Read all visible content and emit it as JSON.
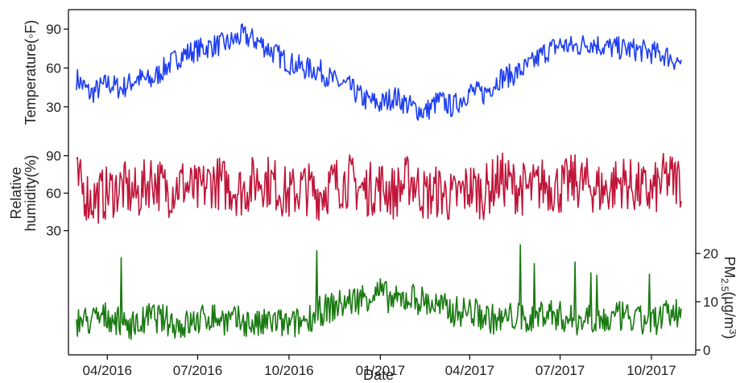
{
  "chart_data": {
    "type": "line",
    "xlabel": "Date",
    "x_ticks": [
      "04/2016",
      "07/2016",
      "10/2016",
      "01/2017",
      "04/2017",
      "07/2017",
      "10/2017"
    ],
    "xlim": [
      "2016-03-01",
      "2017-10-31"
    ],
    "grid": false,
    "legend": "none",
    "panels": [
      {
        "name": "temperature",
        "ylabel": "Temperature(◦F)",
        "y_axis_side": "left",
        "yticks": [
          30,
          60,
          90
        ],
        "ylim": [
          10,
          105
        ],
        "color": "#1f3ff0",
        "series": [
          {
            "name": "",
            "x": [
              "2016-03-01",
              "2016-03-15",
              "2016-04-01",
              "2016-04-15",
              "2016-05-01",
              "2016-05-15",
              "2016-06-01",
              "2016-06-15",
              "2016-07-01",
              "2016-07-15",
              "2016-08-01",
              "2016-08-15",
              "2016-09-01",
              "2016-09-15",
              "2016-10-01",
              "2016-10-15",
              "2016-11-01",
              "2016-11-15",
              "2016-12-01",
              "2016-12-15",
              "2017-01-01",
              "2017-01-15",
              "2017-02-01",
              "2017-02-15",
              "2017-03-01",
              "2017-03-15",
              "2017-04-01",
              "2017-04-15",
              "2017-05-01",
              "2017-05-15",
              "2017-06-01",
              "2017-06-15",
              "2017-07-01",
              "2017-07-15",
              "2017-08-01",
              "2017-08-15",
              "2017-09-01",
              "2017-09-15",
              "2017-10-01",
              "2017-10-15",
              "2017-10-31"
            ],
            "values": [
              52,
              40,
              48,
              44,
              52,
              50,
              62,
              70,
              74,
              77,
              79,
              85,
              80,
              72,
              64,
              60,
              58,
              50,
              45,
              36,
              32,
              38,
              30,
              26,
              35,
              30,
              42,
              40,
              52,
              55,
              62,
              72,
              78,
              76,
              80,
              76,
              75,
              74,
              72,
              70,
              64
            ]
          }
        ]
      },
      {
        "name": "humidity",
        "ylabel": "Relative\nhumidity(%)",
        "y_axis_side": "left",
        "yticks": [
          30,
          60,
          90
        ],
        "ylim": [
          15,
          100
        ],
        "color": "#c0163a",
        "series": [
          {
            "name": "",
            "x": [
              "2016-03-01",
              "2016-03-15",
              "2016-04-01",
              "2016-04-15",
              "2016-05-01",
              "2016-05-15",
              "2016-06-01",
              "2016-06-15",
              "2016-07-01",
              "2016-07-15",
              "2016-08-01",
              "2016-08-15",
              "2016-09-01",
              "2016-09-15",
              "2016-10-01",
              "2016-10-15",
              "2016-11-01",
              "2016-11-15",
              "2016-12-01",
              "2016-12-15",
              "2017-01-01",
              "2017-01-15",
              "2017-02-01",
              "2017-02-15",
              "2017-03-01",
              "2017-03-15",
              "2017-04-01",
              "2017-04-15",
              "2017-05-01",
              "2017-05-15",
              "2017-06-01",
              "2017-06-15",
              "2017-07-01",
              "2017-07-15",
              "2017-08-01",
              "2017-08-15",
              "2017-09-01",
              "2017-09-15",
              "2017-10-01",
              "2017-10-15",
              "2017-10-31"
            ],
            "values": [
              70,
              55,
              60,
              65,
              58,
              72,
              62,
              68,
              60,
              70,
              66,
              62,
              72,
              68,
              58,
              65,
              60,
              68,
              70,
              62,
              66,
              60,
              72,
              58,
              62,
              55,
              65,
              60,
              72,
              66,
              62,
              68,
              64,
              70,
              66,
              62,
              70,
              64,
              60,
              72,
              70
            ]
          }
        ]
      },
      {
        "name": "pm25",
        "ylabel": "PM2.5(µg/m³)",
        "ylabel_parts": [
          "PM",
          "2.5",
          "(µg/m",
          "3",
          ")"
        ],
        "y_axis_side": "right",
        "yticks": [
          0,
          10,
          20
        ],
        "ylim": [
          -1,
          25
        ],
        "color": "#1a7a12",
        "series": [
          {
            "name": "",
            "x": [
              "2016-03-01",
              "2016-03-15",
              "2016-04-01",
              "2016-04-15",
              "2016-05-01",
              "2016-05-15",
              "2016-06-01",
              "2016-06-15",
              "2016-07-01",
              "2016-07-15",
              "2016-08-01",
              "2016-08-15",
              "2016-09-01",
              "2016-09-15",
              "2016-10-01",
              "2016-10-15",
              "2016-11-01",
              "2016-11-15",
              "2016-12-01",
              "2016-12-15",
              "2017-01-01",
              "2017-01-15",
              "2017-02-01",
              "2017-02-15",
              "2017-03-01",
              "2017-03-15",
              "2017-04-01",
              "2017-04-15",
              "2017-05-01",
              "2017-05-15",
              "2017-06-01",
              "2017-06-15",
              "2017-07-01",
              "2017-07-15",
              "2017-08-01",
              "2017-08-15",
              "2017-09-01",
              "2017-09-15",
              "2017-10-01",
              "2017-10-15",
              "2017-10-31"
            ],
            "values": [
              6,
              6,
              7,
              6,
              5,
              7,
              6,
              5,
              6,
              7,
              6,
              6,
              5,
              6,
              5,
              6,
              8,
              9,
              10,
              11,
              12,
              10,
              11,
              10,
              9,
              8,
              8,
              7,
              6,
              7,
              6,
              8,
              7,
              6,
              7,
              6,
              7,
              6,
              6,
              7,
              8
            ]
          }
        ]
      }
    ]
  }
}
